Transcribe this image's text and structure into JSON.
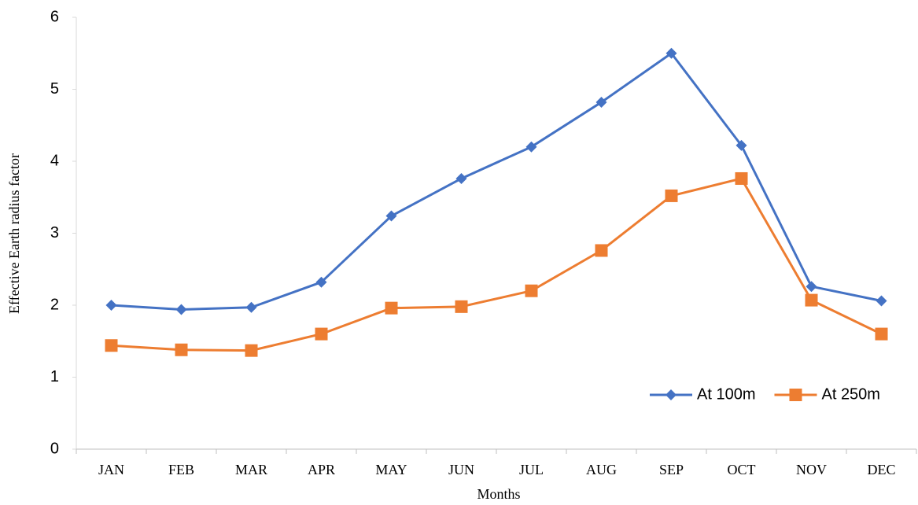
{
  "chart_data": {
    "type": "line",
    "x_label": "Months",
    "y_label": "Effective Earth radius factor",
    "categories": [
      "JAN",
      "FEB",
      "MAR",
      "APR",
      "MAY",
      "JUN",
      "JUL",
      "AUG",
      "SEP",
      "OCT",
      "NOV",
      "DEC"
    ],
    "series": [
      {
        "name": "At 100m",
        "color": "#4472c4",
        "marker": "diamond",
        "values": [
          2.0,
          1.94,
          1.97,
          2.32,
          3.24,
          3.76,
          4.2,
          4.82,
          5.5,
          4.22,
          2.26,
          2.06
        ]
      },
      {
        "name": "At 250m",
        "color": "#ed7d31",
        "marker": "square",
        "values": [
          1.44,
          1.38,
          1.37,
          1.6,
          1.96,
          1.98,
          2.2,
          2.76,
          3.52,
          3.76,
          2.07,
          1.6
        ]
      }
    ],
    "ylim": [
      0,
      6
    ],
    "yticks": [
      0,
      1,
      2,
      3,
      4,
      5,
      6
    ],
    "grid": false,
    "legend": "lower right"
  }
}
